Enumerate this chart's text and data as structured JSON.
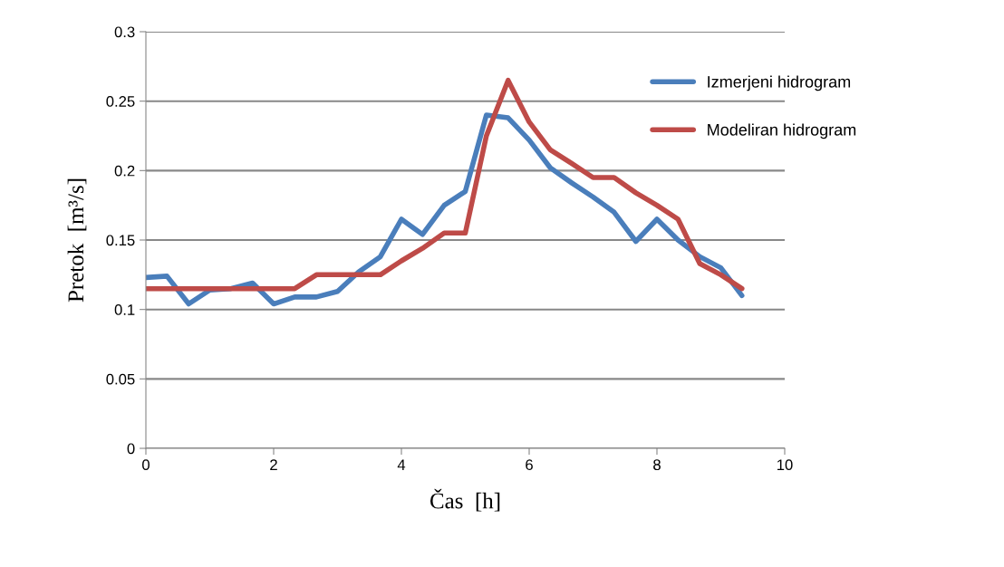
{
  "chart_data": {
    "type": "line",
    "xlabel": "Čas  [h]",
    "ylabel": "Pretok  [m³/s]",
    "xlim": [
      0,
      10
    ],
    "xticks": [
      0,
      2,
      4,
      6,
      8,
      10
    ],
    "ylim": [
      0,
      0.3
    ],
    "yticks": [
      0,
      0.05,
      0.1,
      0.15,
      0.2,
      0.25,
      0.3
    ],
    "grid": "y",
    "legend": "top right",
    "marker": "none",
    "line_style": "solid",
    "series": [
      {
        "name": "Izmerjeni hidrogram",
        "color": "#4a7ebb",
        "x": [
          0,
          0.33,
          0.67,
          1.0,
          1.33,
          1.67,
          2.0,
          2.33,
          2.67,
          3.0,
          3.33,
          3.67,
          4.0,
          4.33,
          4.67,
          5.0,
          5.33,
          5.67,
          6.0,
          6.33,
          6.67,
          7.0,
          7.33,
          7.67,
          8.0,
          8.33,
          8.67,
          9.0,
          9.33
        ],
        "values": [
          0.123,
          0.124,
          0.104,
          0.114,
          0.115,
          0.119,
          0.104,
          0.109,
          0.109,
          0.113,
          0.127,
          0.138,
          0.165,
          0.154,
          0.175,
          0.185,
          0.24,
          0.238,
          0.222,
          0.202,
          0.191,
          0.181,
          0.17,
          0.149,
          0.165,
          0.15,
          0.138,
          0.13,
          0.11
        ]
      },
      {
        "name": "Modeliran hidrogram",
        "color": "#be4b48",
        "x": [
          0,
          0.33,
          0.67,
          1.0,
          1.33,
          1.67,
          2.0,
          2.33,
          2.67,
          3.0,
          3.33,
          3.67,
          4.0,
          4.33,
          4.67,
          5.0,
          5.33,
          5.67,
          6.0,
          6.33,
          6.67,
          7.0,
          7.33,
          7.67,
          8.0,
          8.33,
          8.67,
          9.0,
          9.33
        ],
        "values": [
          0.115,
          0.115,
          0.115,
          0.115,
          0.115,
          0.115,
          0.115,
          0.115,
          0.125,
          0.125,
          0.125,
          0.125,
          0.135,
          0.144,
          0.155,
          0.155,
          0.225,
          0.265,
          0.235,
          0.215,
          0.205,
          0.195,
          0.195,
          0.184,
          0.175,
          0.165,
          0.133,
          0.125,
          0.115
        ]
      }
    ]
  }
}
